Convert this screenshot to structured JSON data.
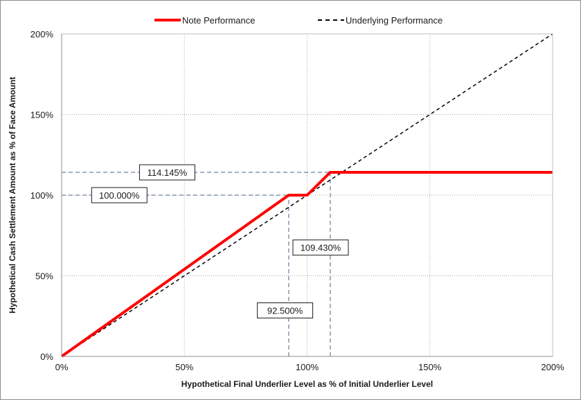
{
  "chart_data": {
    "type": "line",
    "xlabel": "Hypothetical Final Underlier Level as % of Initial Underlier Level",
    "ylabel": "Hypothetical Cash Settlement Amount as % of Face Amount",
    "xlim": [
      0,
      200
    ],
    "ylim": [
      0,
      200
    ],
    "x_ticks": [
      0,
      50,
      100,
      150,
      200
    ],
    "y_ticks": [
      0,
      50,
      100,
      150,
      200
    ],
    "x_tick_labels": [
      "0%",
      "50%",
      "100%",
      "150%",
      "200%"
    ],
    "y_tick_labels": [
      "0%",
      "50%",
      "100%",
      "150%",
      "200%"
    ],
    "grid": true,
    "legend_position": "top",
    "series": [
      {
        "name": "Note Performance",
        "color": "#ff0000",
        "style": "solid",
        "x": [
          0,
          92.5,
          100,
          109.43,
          200
        ],
        "y": [
          0,
          100,
          100,
          114.145,
          114.145
        ]
      },
      {
        "name": "Underlying Performance",
        "color": "#000000",
        "style": "dashed",
        "x": [
          0,
          200
        ],
        "y": [
          0,
          200
        ]
      }
    ],
    "reference_lines": [
      {
        "axis": "y",
        "value": 114.145,
        "x_to": 109.43
      },
      {
        "axis": "y",
        "value": 100,
        "x_to": 92.5
      },
      {
        "axis": "x",
        "value": 92.5,
        "y_to": 100
      },
      {
        "axis": "x",
        "value": 109.43,
        "y_to": 114.145
      }
    ],
    "annotations": [
      {
        "text": "114.145%",
        "x": 43,
        "y": 114.145
      },
      {
        "text": "100.000%",
        "x": 23.5,
        "y": 100
      },
      {
        "text": "109.430%",
        "x": 105.5,
        "y": 67.5
      },
      {
        "text": "92.500%",
        "x": 91,
        "y": 28.5
      }
    ]
  }
}
